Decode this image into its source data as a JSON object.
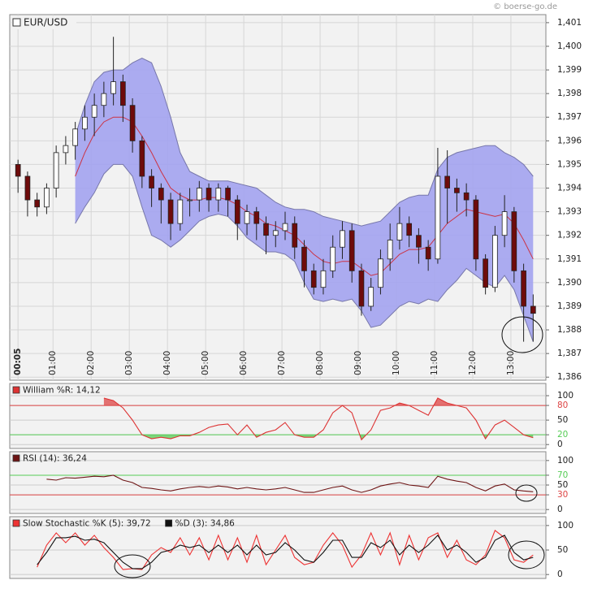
{
  "source": "© boerse-go.de",
  "chart_data": [
    {
      "type": "candlestick",
      "series": [
        {
          "name": "EUR/USD"
        }
      ],
      "x": [
        5,
        20,
        35,
        50,
        65,
        80,
        95,
        110,
        125,
        140,
        155,
        170,
        185,
        200,
        215,
        230,
        245,
        260,
        275,
        290,
        305,
        320,
        335,
        350,
        365,
        380,
        395,
        410,
        425,
        440,
        455,
        470,
        485,
        500,
        515,
        530,
        545,
        560,
        575,
        590,
        605,
        620,
        635,
        650,
        665,
        680,
        695,
        710,
        725,
        740,
        755,
        770,
        785,
        800,
        815
      ],
      "open": [
        1.395,
        1.3945,
        1.3935,
        1.3932,
        1.394,
        1.3955,
        1.3958,
        1.3965,
        1.397,
        1.3975,
        1.398,
        1.3985,
        1.3975,
        1.396,
        1.3945,
        1.394,
        1.3935,
        1.3925,
        1.3935,
        1.3935,
        1.394,
        1.3935,
        1.394,
        1.3935,
        1.3925,
        1.393,
        1.3925,
        1.392,
        1.3922,
        1.3925,
        1.3915,
        1.3905,
        1.3898,
        1.3905,
        1.3915,
        1.3922,
        1.3905,
        1.389,
        1.3898,
        1.391,
        1.3918,
        1.3925,
        1.392,
        1.3915,
        1.391,
        1.3945,
        1.394,
        1.3938,
        1.3935,
        1.391,
        1.3898,
        1.392,
        1.393,
        1.3905,
        1.389
      ],
      "high": [
        1.3952,
        1.3947,
        1.3938,
        1.3942,
        1.3958,
        1.3962,
        1.3968,
        1.3975,
        1.398,
        1.3985,
        1.4004,
        1.3988,
        1.3978,
        1.3962,
        1.3948,
        1.3942,
        1.3938,
        1.3938,
        1.394,
        1.3943,
        1.3942,
        1.3942,
        1.3941,
        1.3937,
        1.3933,
        1.3932,
        1.3928,
        1.3926,
        1.393,
        1.3928,
        1.3918,
        1.3908,
        1.391,
        1.392,
        1.3926,
        1.3925,
        1.3908,
        1.3902,
        1.3914,
        1.3925,
        1.3932,
        1.3928,
        1.3923,
        1.3918,
        1.3957,
        1.3956,
        1.3944,
        1.3942,
        1.3937,
        1.3912,
        1.3924,
        1.3937,
        1.3932,
        1.3908,
        1.3895
      ],
      "low": [
        1.3938,
        1.3928,
        1.3928,
        1.3929,
        1.3936,
        1.395,
        1.3952,
        1.396,
        1.3962,
        1.397,
        1.3975,
        1.3968,
        1.3955,
        1.394,
        1.3932,
        1.3925,
        1.3918,
        1.3922,
        1.3928,
        1.393,
        1.393,
        1.393,
        1.3928,
        1.3918,
        1.392,
        1.3918,
        1.3912,
        1.3915,
        1.3918,
        1.391,
        1.3898,
        1.3895,
        1.3895,
        1.3902,
        1.391,
        1.39,
        1.3886,
        1.3888,
        1.3895,
        1.3905,
        1.3914,
        1.3915,
        1.3908,
        1.3905,
        1.3908,
        1.3925,
        1.393,
        1.3928,
        1.3905,
        1.3895,
        1.3896,
        1.3915,
        1.39,
        1.3875,
        1.3875
      ],
      "close": [
        1.3945,
        1.3935,
        1.3932,
        1.394,
        1.3955,
        1.3958,
        1.3965,
        1.397,
        1.3975,
        1.398,
        1.3985,
        1.3975,
        1.396,
        1.3945,
        1.394,
        1.3935,
        1.3925,
        1.3935,
        1.3935,
        1.394,
        1.3935,
        1.394,
        1.3935,
        1.3925,
        1.393,
        1.3925,
        1.392,
        1.3922,
        1.3925,
        1.3915,
        1.3905,
        1.3898,
        1.3905,
        1.3915,
        1.3922,
        1.3905,
        1.389,
        1.3898,
        1.391,
        1.3918,
        1.3925,
        1.392,
        1.3915,
        1.391,
        1.3945,
        1.394,
        1.3938,
        1.3935,
        1.391,
        1.3898,
        1.392,
        1.393,
        1.3905,
        1.389,
        1.3887
      ],
      "upper": [
        null,
        null,
        null,
        null,
        null,
        null,
        1.3962,
        1.3975,
        1.3985,
        1.3989,
        1.399,
        1.399,
        1.3993,
        1.3995,
        1.3993,
        1.3983,
        1.397,
        1.3955,
        1.3947,
        1.3945,
        1.3943,
        1.3943,
        1.3943,
        1.3942,
        1.3941,
        1.394,
        1.3937,
        1.3934,
        1.3932,
        1.3931,
        1.3931,
        1.393,
        1.3928,
        1.3927,
        1.3926,
        1.3925,
        1.3924,
        1.3925,
        1.3926,
        1.393,
        1.3934,
        1.3936,
        1.3937,
        1.3937,
        1.3948,
        1.3953,
        1.3955,
        1.3956,
        1.3957,
        1.3958,
        1.3958,
        1.3955,
        1.3953,
        1.395,
        1.3945
      ],
      "middle": [
        null,
        null,
        null,
        null,
        null,
        null,
        1.3945,
        1.3955,
        1.3963,
        1.3968,
        1.397,
        1.397,
        1.3968,
        1.3962,
        1.3955,
        1.3947,
        1.394,
        1.3937,
        1.3935,
        1.3935,
        1.3936,
        1.3936,
        1.3935,
        1.3933,
        1.393,
        1.3928,
        1.3925,
        1.3924,
        1.3922,
        1.392,
        1.3916,
        1.3912,
        1.3909,
        1.3908,
        1.3909,
        1.3909,
        1.3906,
        1.3903,
        1.3904,
        1.3908,
        1.3912,
        1.3914,
        1.3914,
        1.3915,
        1.392,
        1.3925,
        1.3928,
        1.3931,
        1.393,
        1.3929,
        1.3928,
        1.3929,
        1.3925,
        1.3918,
        1.391
      ],
      "lower": [
        null,
        null,
        null,
        null,
        null,
        null,
        1.3925,
        1.3932,
        1.3938,
        1.3946,
        1.395,
        1.395,
        1.3945,
        1.3932,
        1.392,
        1.3918,
        1.3915,
        1.3918,
        1.3922,
        1.3926,
        1.3928,
        1.3929,
        1.3928,
        1.3924,
        1.3919,
        1.3916,
        1.3913,
        1.3913,
        1.3912,
        1.3909,
        1.39,
        1.3893,
        1.3892,
        1.3893,
        1.3892,
        1.3893,
        1.3888,
        1.3881,
        1.3882,
        1.3886,
        1.389,
        1.3892,
        1.3891,
        1.3893,
        1.3892,
        1.3897,
        1.3901,
        1.3906,
        1.3903,
        1.39,
        1.3898,
        1.3903,
        1.3897,
        1.3886,
        1.3875
      ],
      "up_color": "#ffffff",
      "down_color": "#6e0b0b",
      "band_color": "#a3a3f0",
      "band_edge_color": "#7777aa",
      "middle_color": "#cc3344",
      "xlim": [
        -8,
        835
      ],
      "ylim": [
        1.38587,
        1.40134
      ],
      "xticks": [
        {
          "value": 5,
          "label": "00:05"
        },
        {
          "value": 60,
          "label": "01:00"
        },
        {
          "value": 120,
          "label": "02:00"
        },
        {
          "value": 180,
          "label": "03:00"
        },
        {
          "value": 240,
          "label": "04:00"
        },
        {
          "value": 300,
          "label": "05:00"
        },
        {
          "value": 360,
          "label": "06:00"
        },
        {
          "value": 420,
          "label": "07:00"
        },
        {
          "value": 480,
          "label": "08:00"
        },
        {
          "value": 540,
          "label": "09:00"
        },
        {
          "value": 600,
          "label": "10:00"
        },
        {
          "value": 660,
          "label": "11:00"
        },
        {
          "value": 720,
          "label": "12:00"
        },
        {
          "value": 780,
          "label": "13:00"
        }
      ],
      "yticks": [
        {
          "value": 1.386,
          "label": "1,386"
        },
        {
          "value": 1.387,
          "label": "1,387"
        },
        {
          "value": 1.388,
          "label": "1,388"
        },
        {
          "value": 1.389,
          "label": "1,389"
        },
        {
          "value": 1.39,
          "label": "1,390"
        },
        {
          "value": 1.391,
          "label": "1,391"
        },
        {
          "value": 1.392,
          "label": "1,392"
        },
        {
          "value": 1.393,
          "label": "1,393"
        },
        {
          "value": 1.394,
          "label": "1,394"
        },
        {
          "value": 1.395,
          "label": "1,395"
        },
        {
          "value": 1.396,
          "label": "1,396"
        },
        {
          "value": 1.397,
          "label": "1,397"
        },
        {
          "value": 1.398,
          "label": "1,398"
        },
        {
          "value": 1.399,
          "label": "1,399"
        },
        {
          "value": 1.4,
          "label": "1,400"
        },
        {
          "value": 1.401,
          "label": "1,401"
        }
      ],
      "grid": true
    },
    {
      "type": "line",
      "series": [
        {
          "name": "William %R: 14,12",
          "color": "#dd3333",
          "values": [
            null,
            null,
            null,
            null,
            null,
            null,
            null,
            null,
            null,
            95,
            90,
            75,
            50,
            20,
            12,
            15,
            12,
            18,
            18,
            25,
            35,
            40,
            42,
            20,
            40,
            15,
            25,
            30,
            45,
            20,
            15,
            15,
            30,
            65,
            80,
            65,
            10,
            30,
            70,
            75,
            85,
            80,
            70,
            60,
            95,
            85,
            80,
            75,
            50,
            12,
            40,
            50,
            35,
            20,
            14.12
          ]
        }
      ],
      "ylim": [
        -8,
        125
      ],
      "yticks": [
        0,
        20,
        50,
        80,
        100
      ],
      "reference_lines": [
        {
          "value": 80,
          "color": "#dd4444",
          "fill": "above"
        },
        {
          "value": 20,
          "color": "#55cc55",
          "fill": "below"
        }
      ]
    },
    {
      "type": "line",
      "series": [
        {
          "name": "RSI (14): 36,24",
          "color": "#6e1515",
          "values": [
            null,
            null,
            null,
            62,
            60,
            65,
            64,
            66,
            68,
            67,
            70,
            60,
            55,
            45,
            43,
            40,
            38,
            42,
            45,
            47,
            45,
            48,
            46,
            42,
            45,
            42,
            40,
            42,
            45,
            40,
            35,
            35,
            40,
            45,
            48,
            40,
            35,
            40,
            48,
            52,
            55,
            50,
            48,
            45,
            68,
            62,
            58,
            55,
            45,
            38,
            48,
            52,
            40,
            38,
            36.24
          ]
        }
      ],
      "ylim": [
        -8,
        118
      ],
      "yticks": [
        0,
        30,
        50,
        70,
        100
      ],
      "reference_lines": [
        {
          "value": 70,
          "color": "#55cc55"
        },
        {
          "value": 30,
          "color": "#dd4444"
        }
      ]
    },
    {
      "type": "line",
      "series": [
        {
          "name": "Slow Stochastic %K (5): 39,72",
          "color": "#ee3333",
          "values": [
            null,
            null,
            15,
            60,
            85,
            65,
            85,
            60,
            80,
            55,
            35,
            10,
            12,
            10,
            40,
            55,
            45,
            75,
            40,
            75,
            30,
            80,
            30,
            75,
            25,
            80,
            20,
            50,
            80,
            35,
            20,
            25,
            60,
            85,
            60,
            15,
            40,
            85,
            40,
            85,
            20,
            80,
            30,
            75,
            85,
            35,
            70,
            30,
            20,
            40,
            90,
            75,
            30,
            25,
            39.72
          ]
        },
        {
          "name": "%D (3): 34,86",
          "color": "#111111",
          "values": [
            null,
            null,
            20,
            45,
            75,
            75,
            78,
            70,
            72,
            65,
            45,
            25,
            12,
            12,
            25,
            45,
            50,
            60,
            55,
            60,
            45,
            60,
            45,
            60,
            40,
            60,
            40,
            45,
            65,
            50,
            30,
            25,
            45,
            70,
            70,
            35,
            35,
            65,
            55,
            70,
            40,
            60,
            45,
            60,
            80,
            50,
            60,
            45,
            25,
            35,
            70,
            80,
            45,
            30,
            34.86
          ]
        }
      ],
      "ylim": [
        -8,
        118
      ],
      "yticks": [
        0,
        50,
        100
      ]
    }
  ]
}
